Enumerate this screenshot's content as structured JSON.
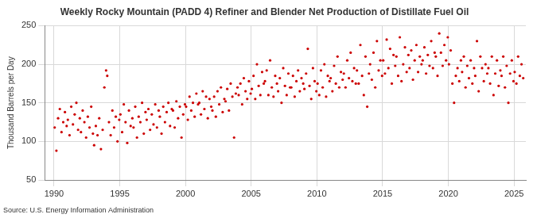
{
  "chart_data": {
    "type": "scatter",
    "title": "Weekly Rocky Mountain (PADD 4) Refiner and Blender Net Production of Distillate Fuel Oil",
    "y_label": "Thousand Barrels per Day",
    "source": "Source: U.S. Energy Information Administration",
    "color": "#cc0000",
    "marker": "circle",
    "grid": true,
    "xlim": [
      1989.3,
      2025.9
    ],
    "xticks": [
      1990,
      1995,
      2000,
      2005,
      2010,
      2015,
      2020,
      2025
    ],
    "ylim": [
      50,
      250
    ],
    "yticks": [
      50,
      100,
      150,
      200,
      250
    ],
    "x": [
      1990.05,
      1990.18,
      1990.31,
      1990.44,
      1990.57,
      1990.7,
      1990.83,
      1990.96,
      1991.05,
      1991.18,
      1991.31,
      1991.44,
      1991.57,
      1991.7,
      1991.83,
      1991.96,
      1992.05,
      1992.18,
      1992.31,
      1992.44,
      1992.57,
      1992.7,
      1992.83,
      1992.96,
      1993.05,
      1993.18,
      1993.31,
      1993.44,
      1993.57,
      1993.7,
      1993.83,
      1993.96,
      1994.05,
      1994.18,
      1994.31,
      1994.44,
      1994.57,
      1994.7,
      1994.83,
      1994.96,
      1995.05,
      1995.18,
      1995.31,
      1995.44,
      1995.57,
      1995.7,
      1995.83,
      1995.96,
      1996.05,
      1996.18,
      1996.31,
      1996.44,
      1996.57,
      1996.7,
      1996.83,
      1996.96,
      1997.05,
      1997.18,
      1997.31,
      1997.44,
      1997.57,
      1997.7,
      1997.83,
      1997.96,
      1998.05,
      1998.18,
      1998.31,
      1998.44,
      1998.57,
      1998.7,
      1998.83,
      1998.96,
      1999.05,
      1999.18,
      1999.31,
      1999.44,
      1999.57,
      1999.7,
      1999.83,
      1999.96,
      2000.05,
      2000.18,
      2000.31,
      2000.44,
      2000.57,
      2000.7,
      2000.83,
      2000.96,
      2001.05,
      2001.18,
      2001.31,
      2001.44,
      2001.57,
      2001.7,
      2001.83,
      2001.96,
      2002.05,
      2002.18,
      2002.31,
      2002.44,
      2002.57,
      2002.7,
      2002.83,
      2002.96,
      2003.05,
      2003.18,
      2003.31,
      2003.44,
      2003.57,
      2003.7,
      2003.83,
      2003.96,
      2004.05,
      2004.18,
      2004.31,
      2004.44,
      2004.57,
      2004.7,
      2004.83,
      2004.96,
      2005.05,
      2005.18,
      2005.31,
      2005.44,
      2005.57,
      2005.7,
      2005.83,
      2005.96,
      2006.05,
      2006.18,
      2006.31,
      2006.44,
      2006.57,
      2006.7,
      2006.83,
      2006.96,
      2007.05,
      2007.18,
      2007.31,
      2007.44,
      2007.57,
      2007.7,
      2007.83,
      2007.96,
      2008.05,
      2008.18,
      2008.31,
      2008.44,
      2008.57,
      2008.7,
      2008.83,
      2008.96,
      2009.05,
      2009.18,
      2009.31,
      2009.44,
      2009.57,
      2009.7,
      2009.83,
      2009.96,
      2010.05,
      2010.18,
      2010.31,
      2010.44,
      2010.57,
      2010.7,
      2010.83,
      2010.96,
      2011.05,
      2011.18,
      2011.31,
      2011.44,
      2011.57,
      2011.7,
      2011.83,
      2011.96,
      2012.05,
      2012.18,
      2012.31,
      2012.44,
      2012.57,
      2012.7,
      2012.83,
      2012.96,
      2013.05,
      2013.18,
      2013.31,
      2013.44,
      2013.57,
      2013.7,
      2013.83,
      2013.96,
      2014.05,
      2014.18,
      2014.31,
      2014.44,
      2014.57,
      2014.7,
      2014.83,
      2014.96,
      2015.05,
      2015.18,
      2015.31,
      2015.44,
      2015.57,
      2015.7,
      2015.83,
      2015.96,
      2016.05,
      2016.18,
      2016.31,
      2016.44,
      2016.57,
      2016.7,
      2016.83,
      2016.96,
      2017.05,
      2017.18,
      2017.31,
      2017.44,
      2017.57,
      2017.7,
      2017.83,
      2017.96,
      2018.05,
      2018.18,
      2018.31,
      2018.44,
      2018.57,
      2018.7,
      2018.83,
      2018.96,
      2019.05,
      2019.18,
      2019.31,
      2019.44,
      2019.57,
      2019.7,
      2019.83,
      2019.96,
      2020.05,
      2020.18,
      2020.31,
      2020.44,
      2020.57,
      2020.7,
      2020.83,
      2020.96,
      2021.05,
      2021.18,
      2021.31,
      2021.44,
      2021.57,
      2021.7,
      2021.83,
      2021.96,
      2022.05,
      2022.18,
      2022.31,
      2022.44,
      2022.57,
      2022.7,
      2022.83,
      2022.96,
      2023.05,
      2023.18,
      2023.31,
      2023.44,
      2023.57,
      2023.7,
      2023.83,
      2023.96,
      2024.05,
      2024.18,
      2024.31,
      2024.44,
      2024.57,
      2024.7,
      2024.83,
      2024.96,
      2025.05,
      2025.18,
      2025.31,
      2025.44,
      2025.57,
      2025.7
    ],
    "values": [
      118,
      88,
      130,
      142,
      112,
      125,
      138,
      120,
      128,
      108,
      145,
      122,
      135,
      150,
      115,
      130,
      112,
      140,
      125,
      105,
      132,
      118,
      145,
      110,
      95,
      120,
      108,
      130,
      90,
      115,
      170,
      192,
      185,
      125,
      108,
      140,
      118,
      132,
      100,
      128,
      135,
      112,
      148,
      125,
      98,
      140,
      120,
      130,
      118,
      145,
      105,
      132,
      125,
      150,
      110,
      138,
      128,
      142,
      115,
      135,
      122,
      148,
      118,
      140,
      132,
      110,
      145,
      125,
      138,
      150,
      120,
      142,
      140,
      118,
      152,
      130,
      145,
      105,
      135,
      148,
      145,
      128,
      158,
      140,
      150,
      132,
      162,
      148,
      150,
      135,
      165,
      142,
      158,
      130,
      155,
      145,
      140,
      158,
      132,
      165,
      148,
      170,
      138,
      155,
      152,
      168,
      140,
      175,
      158,
      105,
      162,
      170,
      160,
      175,
      148,
      182,
      165,
      155,
      178,
      162,
      168,
      185,
      155,
      200,
      172,
      160,
      190,
      175,
      178,
      192,
      160,
      205,
      170,
      158,
      185,
      175,
      165,
      182,
      150,
      195,
      172,
      160,
      188,
      170,
      170,
      185,
      158,
      178,
      192,
      165,
      182,
      175,
      168,
      188,
      220,
      172,
      155,
      195,
      178,
      165,
      175,
      160,
      192,
      170,
      200,
      158,
      185,
      178,
      182,
      165,
      198,
      175,
      210,
      170,
      190,
      180,
      188,
      170,
      205,
      182,
      215,
      178,
      195,
      175,
      192,
      175,
      225,
      185,
      160,
      210,
      145,
      188,
      200,
      180,
      215,
      170,
      230,
      192,
      205,
      185,
      205,
      188,
      232,
      195,
      220,
      175,
      212,
      198,
      210,
      185,
      235,
      178,
      200,
      222,
      190,
      212,
      195,
      218,
      180,
      205,
      225,
      190,
      210,
      200,
      205,
      222,
      188,
      212,
      198,
      230,
      195,
      215,
      210,
      185,
      240,
      215,
      198,
      225,
      205,
      235,
      200,
      218,
      175,
      150,
      185,
      195,
      178,
      205,
      190,
      210,
      170,
      198,
      182,
      205,
      175,
      195,
      185,
      230,
      165,
      210,
      195,
      178,
      200,
      188,
      195,
      175,
      210,
      160,
      188,
      205,
      172,
      192,
      185,
      210,
      170,
      198,
      150,
      188,
      205,
      178,
      190,
      175,
      210,
      185,
      200,
      182
    ]
  }
}
